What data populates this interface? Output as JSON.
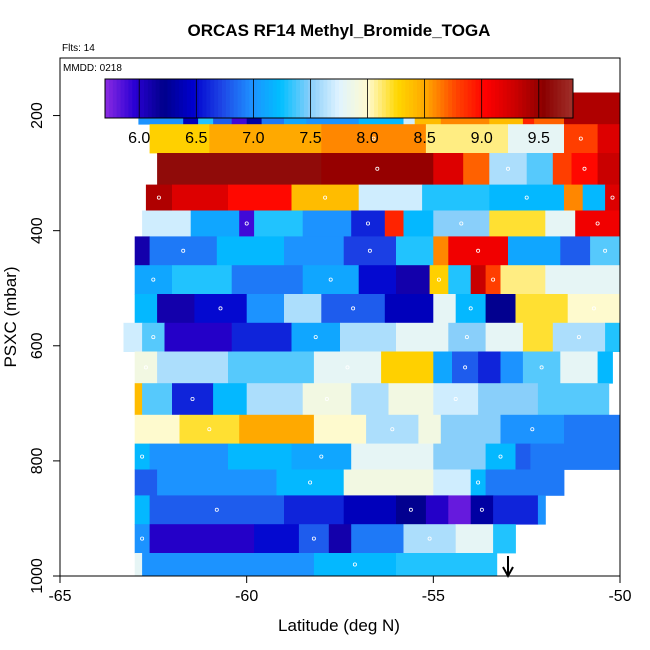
{
  "chart_data": {
    "type": "heatmap",
    "title": "ORCAS RF14 Methyl_Bromide_TOGA",
    "notes": {
      "flights": "Flts: 14",
      "mmdd": "MMDD: 0218"
    },
    "xlabel": "Latitude (deg N)",
    "ylabel": "PSXC (mbar)",
    "xlim": [
      -65,
      -50
    ],
    "ylim": [
      1000,
      100
    ],
    "x_ticks": [
      -65,
      -60,
      -55,
      -50
    ],
    "y_ticks": [
      200,
      400,
      600,
      800,
      1000
    ],
    "grid": false,
    "colorbar": {
      "placement": "top",
      "range": [
        5.7,
        9.8
      ],
      "ticks": [
        "6.0",
        "6.5",
        "7.0",
        "7.5",
        "8.0",
        "8.5",
        "9.0",
        "9.5"
      ],
      "colors": [
        "#8b2be2",
        "#2b00d4",
        "#00008b",
        "#0000cd",
        "#1e46e6",
        "#1e90ff",
        "#00bfff",
        "#87cefa",
        "#e0f4ff",
        "#fffacd",
        "#ffd700",
        "#ffa500",
        "#ff4500",
        "#ff0000",
        "#cc0000",
        "#8b0000",
        "#a0302a"
      ]
    },
    "marker": {
      "lat": -53,
      "pressure": 995,
      "note": "arrow"
    },
    "bands": [
      {
        "p": [
          160,
          215
        ],
        "segs": [
          [
            -62.9,
            -61.7,
            7.0
          ],
          [
            -61.7,
            -61.3,
            6.4
          ],
          [
            -61.3,
            -60.9,
            7.3
          ],
          [
            -60.9,
            -60.4,
            6.8
          ],
          [
            -60.4,
            -60.0,
            5.9
          ],
          [
            -60.0,
            -59.6,
            6.3
          ],
          [
            -59.6,
            -59.0,
            6.9
          ],
          [
            -59.0,
            -58.4,
            7.1
          ],
          [
            -58.4,
            -57.0,
            7.0
          ],
          [
            -57.0,
            -55.8,
            7.2
          ],
          [
            -55.8,
            -55.5,
            7.7
          ],
          [
            -55.5,
            -54.8,
            8.4
          ],
          [
            -54.8,
            -53.5,
            8.6
          ],
          [
            -53.5,
            -52.6,
            8.4
          ],
          [
            -52.6,
            -52.3,
            8.9
          ],
          [
            -52.3,
            -51.5,
            8.7
          ],
          [
            -51.5,
            -50.0,
            9.4
          ]
        ]
      },
      {
        "p": [
          215,
          265
        ],
        "segs": [
          [
            -62.6,
            -61.0,
            8.3
          ],
          [
            -61.0,
            -58.0,
            8.5
          ],
          [
            -58.0,
            -55.2,
            8.6
          ],
          [
            -55.2,
            -53.0,
            8.1
          ],
          [
            -53.0,
            -51.5,
            7.8
          ],
          [
            -51.5,
            -50.6,
            8.8
          ],
          [
            -50.6,
            -50.0,
            9.2
          ]
        ]
      },
      {
        "p": [
          265,
          320
        ],
        "segs": [
          [
            -62.4,
            -58.0,
            9.6
          ],
          [
            -58.0,
            -55.0,
            9.5
          ],
          [
            -55.0,
            -54.2,
            9.2
          ],
          [
            -54.2,
            -53.5,
            8.7
          ],
          [
            -53.5,
            -52.5,
            7.6
          ],
          [
            -52.5,
            -51.8,
            7.4
          ],
          [
            -51.8,
            -51.3,
            8.8
          ],
          [
            -51.3,
            -50.6,
            9.0
          ],
          [
            -50.6,
            -50.0,
            9.3
          ]
        ]
      },
      {
        "p": [
          320,
          365
        ],
        "segs": [
          [
            -62.7,
            -62.0,
            9.4
          ],
          [
            -62.0,
            -60.5,
            9.2
          ],
          [
            -60.5,
            -58.8,
            9.0
          ],
          [
            -58.8,
            -57.0,
            8.4
          ],
          [
            -57.0,
            -55.3,
            7.7
          ],
          [
            -55.3,
            -53.5,
            7.3
          ],
          [
            -53.5,
            -51.5,
            7.2
          ],
          [
            -51.5,
            -51.0,
            8.6
          ],
          [
            -51.0,
            -50.4,
            7.2
          ],
          [
            -50.4,
            -50.0,
            9.2
          ]
        ]
      },
      {
        "p": [
          365,
          410
        ],
        "segs": [
          [
            -62.8,
            -61.5,
            7.7
          ],
          [
            -61.5,
            -60.2,
            7.1
          ],
          [
            -60.2,
            -59.8,
            5.9
          ],
          [
            -59.8,
            -58.5,
            7.3
          ],
          [
            -58.5,
            -57.2,
            7.0
          ],
          [
            -57.2,
            -56.3,
            6.6
          ],
          [
            -56.3,
            -55.8,
            8.9
          ],
          [
            -55.8,
            -55.0,
            7.2
          ],
          [
            -55.0,
            -53.5,
            7.5
          ],
          [
            -53.5,
            -52.0,
            8.2
          ],
          [
            -52.0,
            -51.2,
            7.8
          ],
          [
            -51.2,
            -50.0,
            9.1
          ]
        ]
      },
      {
        "p": [
          410,
          460
        ],
        "segs": [
          [
            -63.0,
            -62.6,
            6.1
          ],
          [
            -62.6,
            -60.8,
            6.9
          ],
          [
            -60.8,
            -59.0,
            7.2
          ],
          [
            -59.0,
            -57.4,
            7.0
          ],
          [
            -57.4,
            -56.0,
            6.7
          ],
          [
            -56.0,
            -55.0,
            7.3
          ],
          [
            -55.0,
            -54.6,
            8.6
          ],
          [
            -54.6,
            -53.0,
            9.1
          ],
          [
            -53.0,
            -51.6,
            7.1
          ],
          [
            -51.6,
            -50.8,
            6.8
          ],
          [
            -50.8,
            -50.0,
            7.4
          ]
        ]
      },
      {
        "p": [
          460,
          510
        ],
        "segs": [
          [
            -63.0,
            -62.0,
            7.1
          ],
          [
            -62.0,
            -60.4,
            7.3
          ],
          [
            -60.4,
            -58.5,
            6.9
          ],
          [
            -58.5,
            -57.0,
            7.1
          ],
          [
            -57.0,
            -56.0,
            6.5
          ],
          [
            -56.0,
            -55.1,
            6.1
          ],
          [
            -55.1,
            -54.6,
            8.3
          ],
          [
            -54.6,
            -54.0,
            7.3
          ],
          [
            -54.0,
            -53.6,
            9.3
          ],
          [
            -53.6,
            -53.2,
            8.8
          ],
          [
            -53.2,
            -52.0,
            8.1
          ],
          [
            -52.0,
            -50.0,
            7.8
          ]
        ]
      },
      {
        "p": [
          510,
          560
        ],
        "segs": [
          [
            -63.0,
            -62.4,
            7.2
          ],
          [
            -62.4,
            -61.4,
            6.1
          ],
          [
            -61.4,
            -60.0,
            6.5
          ],
          [
            -60.0,
            -59.0,
            7.0
          ],
          [
            -59.0,
            -58.0,
            7.6
          ],
          [
            -58.0,
            -56.3,
            6.8
          ],
          [
            -56.3,
            -55.0,
            6.4
          ],
          [
            -55.0,
            -54.4,
            7.8
          ],
          [
            -54.4,
            -53.6,
            7.2
          ],
          [
            -53.6,
            -52.8,
            6.2
          ],
          [
            -52.8,
            -51.4,
            8.2
          ],
          [
            -51.4,
            -50.0,
            8.0
          ]
        ]
      },
      {
        "p": [
          560,
          610
        ],
        "segs": [
          [
            -63.3,
            -62.8,
            7.7
          ],
          [
            -62.8,
            -62.2,
            7.4
          ],
          [
            -62.2,
            -60.4,
            6.0
          ],
          [
            -60.4,
            -58.8,
            6.6
          ],
          [
            -58.8,
            -57.5,
            7.1
          ],
          [
            -57.5,
            -56.0,
            7.6
          ],
          [
            -56.0,
            -54.6,
            7.8
          ],
          [
            -54.6,
            -53.6,
            7.5
          ],
          [
            -53.6,
            -52.6,
            7.8
          ],
          [
            -52.6,
            -51.8,
            8.2
          ],
          [
            -51.8,
            -50.4,
            7.6
          ],
          [
            -50.4,
            -50.0,
            7.3
          ]
        ]
      },
      {
        "p": [
          610,
          665
        ],
        "segs": [
          [
            -63.0,
            -62.4,
            7.9
          ],
          [
            -62.4,
            -60.5,
            7.6
          ],
          [
            -60.5,
            -58.2,
            7.4
          ],
          [
            -58.2,
            -56.4,
            7.8
          ],
          [
            -56.4,
            -55.0,
            8.3
          ],
          [
            -55.0,
            -54.5,
            7.1
          ],
          [
            -54.5,
            -53.8,
            6.8
          ],
          [
            -53.8,
            -53.2,
            6.6
          ],
          [
            -53.2,
            -52.6,
            7.0
          ],
          [
            -52.6,
            -51.6,
            7.4
          ],
          [
            -51.6,
            -50.6,
            7.8
          ],
          [
            -50.6,
            -50.2,
            7.2
          ]
        ]
      },
      {
        "p": [
          665,
          720
        ],
        "segs": [
          [
            -63.0,
            -62.8,
            8.4
          ],
          [
            -62.8,
            -62.0,
            7.4
          ],
          [
            -62.0,
            -60.9,
            6.6
          ],
          [
            -60.9,
            -60.0,
            7.2
          ],
          [
            -60.0,
            -58.5,
            7.6
          ],
          [
            -58.5,
            -57.2,
            7.9
          ],
          [
            -57.2,
            -56.2,
            7.6
          ],
          [
            -56.2,
            -55.0,
            7.9
          ],
          [
            -55.0,
            -53.8,
            7.7
          ],
          [
            -53.8,
            -52.2,
            7.5
          ],
          [
            -52.2,
            -50.3,
            7.4
          ]
        ]
      },
      {
        "p": [
          720,
          770
        ],
        "segs": [
          [
            -63.0,
            -61.8,
            8.0
          ],
          [
            -61.8,
            -60.2,
            8.2
          ],
          [
            -60.2,
            -58.2,
            8.5
          ],
          [
            -58.2,
            -56.8,
            8.0
          ],
          [
            -56.8,
            -55.4,
            7.6
          ],
          [
            -55.4,
            -54.8,
            7.9
          ],
          [
            -54.8,
            -53.2,
            7.5
          ],
          [
            -53.2,
            -51.5,
            7.0
          ],
          [
            -51.5,
            -50.0,
            6.9
          ]
        ]
      },
      {
        "p": [
          770,
          815
        ],
        "segs": [
          [
            -63.0,
            -62.6,
            7.2
          ],
          [
            -62.6,
            -60.5,
            7.0
          ],
          [
            -60.5,
            -58.8,
            7.2
          ],
          [
            -58.8,
            -57.2,
            7.1
          ],
          [
            -57.2,
            -55.0,
            7.8
          ],
          [
            -55.0,
            -53.6,
            7.5
          ],
          [
            -53.6,
            -52.8,
            7.2
          ],
          [
            -52.8,
            -52.4,
            6.8
          ],
          [
            -52.4,
            -50.0,
            6.9
          ]
        ]
      },
      {
        "p": [
          815,
          860
        ],
        "segs": [
          [
            -63.0,
            -62.4,
            6.8
          ],
          [
            -62.4,
            -59.2,
            7.0
          ],
          [
            -59.2,
            -57.4,
            7.2
          ],
          [
            -57.4,
            -55.0,
            7.9
          ],
          [
            -55.0,
            -54.0,
            7.7
          ],
          [
            -54.0,
            -53.6,
            7.2
          ],
          [
            -53.6,
            -51.5,
            6.9
          ]
        ]
      },
      {
        "p": [
          860,
          910
        ],
        "segs": [
          [
            -63.0,
            -62.6,
            7.2
          ],
          [
            -62.6,
            -59.0,
            6.8
          ],
          [
            -59.0,
            -57.4,
            6.6
          ],
          [
            -57.4,
            -56.0,
            6.4
          ],
          [
            -56.0,
            -55.2,
            6.2
          ],
          [
            -55.2,
            -54.6,
            6.0
          ],
          [
            -54.6,
            -54.0,
            5.8
          ],
          [
            -54.0,
            -53.4,
            6.3
          ],
          [
            -53.4,
            -52.2,
            6.6
          ],
          [
            -52.2,
            -52.0,
            7.0
          ]
        ]
      },
      {
        "p": [
          910,
          960
        ],
        "segs": [
          [
            -63.0,
            -62.6,
            7.0
          ],
          [
            -62.6,
            -59.8,
            6.0
          ],
          [
            -59.8,
            -58.6,
            6.5
          ],
          [
            -58.6,
            -57.8,
            6.8
          ],
          [
            -57.8,
            -57.2,
            6.1
          ],
          [
            -57.2,
            -55.8,
            6.9
          ],
          [
            -55.8,
            -54.4,
            7.6
          ],
          [
            -54.4,
            -53.4,
            7.8
          ],
          [
            -53.4,
            -52.8,
            7.3
          ]
        ]
      },
      {
        "p": [
          960,
          1000
        ],
        "segs": [
          [
            -63.0,
            -62.8,
            7.8
          ],
          [
            -62.8,
            -58.2,
            7.0
          ],
          [
            -58.2,
            -56.0,
            7.2
          ],
          [
            -56.0,
            -53.3,
            7.3
          ]
        ]
      }
    ]
  }
}
